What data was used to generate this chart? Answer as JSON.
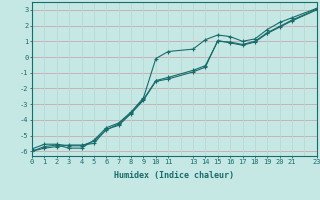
{
  "xlabel": "Humidex (Indice chaleur)",
  "bg_color": "#c5e8e5",
  "grid_color_h": "#c8a8b0",
  "grid_color_v": "#b8d8d0",
  "line_color": "#1a6b6b",
  "xlim": [
    0,
    23
  ],
  "ylim": [
    -6.3,
    3.5
  ],
  "xticks": [
    0,
    1,
    2,
    3,
    4,
    5,
    6,
    7,
    8,
    9,
    10,
    11,
    13,
    14,
    15,
    16,
    17,
    18,
    19,
    20,
    21,
    23
  ],
  "yticks": [
    -6,
    -5,
    -4,
    -3,
    -2,
    -1,
    0,
    1,
    2,
    3
  ],
  "series1_x": [
    0,
    1,
    2,
    3,
    4,
    5,
    6,
    7,
    8,
    9,
    10,
    11,
    13,
    14,
    15,
    16,
    17,
    18,
    19,
    20,
    21,
    23
  ],
  "series1_y": [
    -6.0,
    -5.7,
    -5.6,
    -5.8,
    -5.8,
    -5.3,
    -4.5,
    -4.2,
    -3.5,
    -2.6,
    -0.1,
    0.35,
    0.5,
    1.1,
    1.4,
    1.3,
    1.0,
    1.15,
    1.75,
    2.2,
    2.5,
    3.1
  ],
  "series2_x": [
    0,
    1,
    2,
    3,
    4,
    5,
    6,
    7,
    8,
    9,
    10,
    11,
    13,
    14,
    15,
    16,
    17,
    18,
    19,
    20,
    21,
    23
  ],
  "series2_y": [
    -6.0,
    -5.8,
    -5.7,
    -5.6,
    -5.6,
    -5.5,
    -4.6,
    -4.35,
    -3.6,
    -2.75,
    -1.55,
    -1.4,
    -0.95,
    -0.65,
    1.05,
    0.9,
    0.75,
    0.95,
    1.5,
    1.9,
    2.3,
    3.0
  ],
  "series3_x": [
    0,
    1,
    2,
    3,
    4,
    5,
    6,
    7,
    8,
    9,
    10,
    11,
    13,
    14,
    15,
    16,
    17,
    18,
    19,
    20,
    21,
    23
  ],
  "series3_y": [
    -5.85,
    -5.55,
    -5.55,
    -5.65,
    -5.65,
    -5.35,
    -4.65,
    -4.25,
    -3.55,
    -2.7,
    -1.5,
    -1.3,
    -0.85,
    -0.55,
    1.0,
    0.95,
    0.8,
    1.0,
    1.55,
    1.95,
    2.35,
    3.05
  ]
}
